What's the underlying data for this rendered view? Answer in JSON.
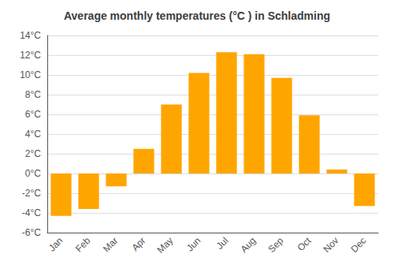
{
  "chart_data": {
    "type": "bar",
    "title": "Average monthly temperatures (°C ) in Schladming",
    "categories": [
      "Jan",
      "Feb",
      "Mar",
      "Apr",
      "May",
      "Jun",
      "Jul",
      "Aug",
      "Sep",
      "Oct",
      "Nov",
      "Dec"
    ],
    "values": [
      -4.3,
      -3.6,
      -1.3,
      2.5,
      7.0,
      10.2,
      12.3,
      12.1,
      9.7,
      5.9,
      0.4,
      -3.3
    ],
    "color": "#FFA500",
    "ylim": [
      -6,
      14
    ],
    "yticks": [
      {
        "value": -6,
        "label": "-6°C"
      },
      {
        "value": -4,
        "label": "-4°C"
      },
      {
        "value": -2,
        "label": "-2°C"
      },
      {
        "value": 0,
        "label": "0°C"
      },
      {
        "value": 2,
        "label": "2°C"
      },
      {
        "value": 4,
        "label": "4°C"
      },
      {
        "value": 6,
        "label": "6°C"
      },
      {
        "value": 8,
        "label": "8°C"
      },
      {
        "value": 10,
        "label": "10°C"
      },
      {
        "value": 12,
        "label": "12°C"
      },
      {
        "value": 14,
        "label": "14°C"
      }
    ],
    "grid": true
  }
}
